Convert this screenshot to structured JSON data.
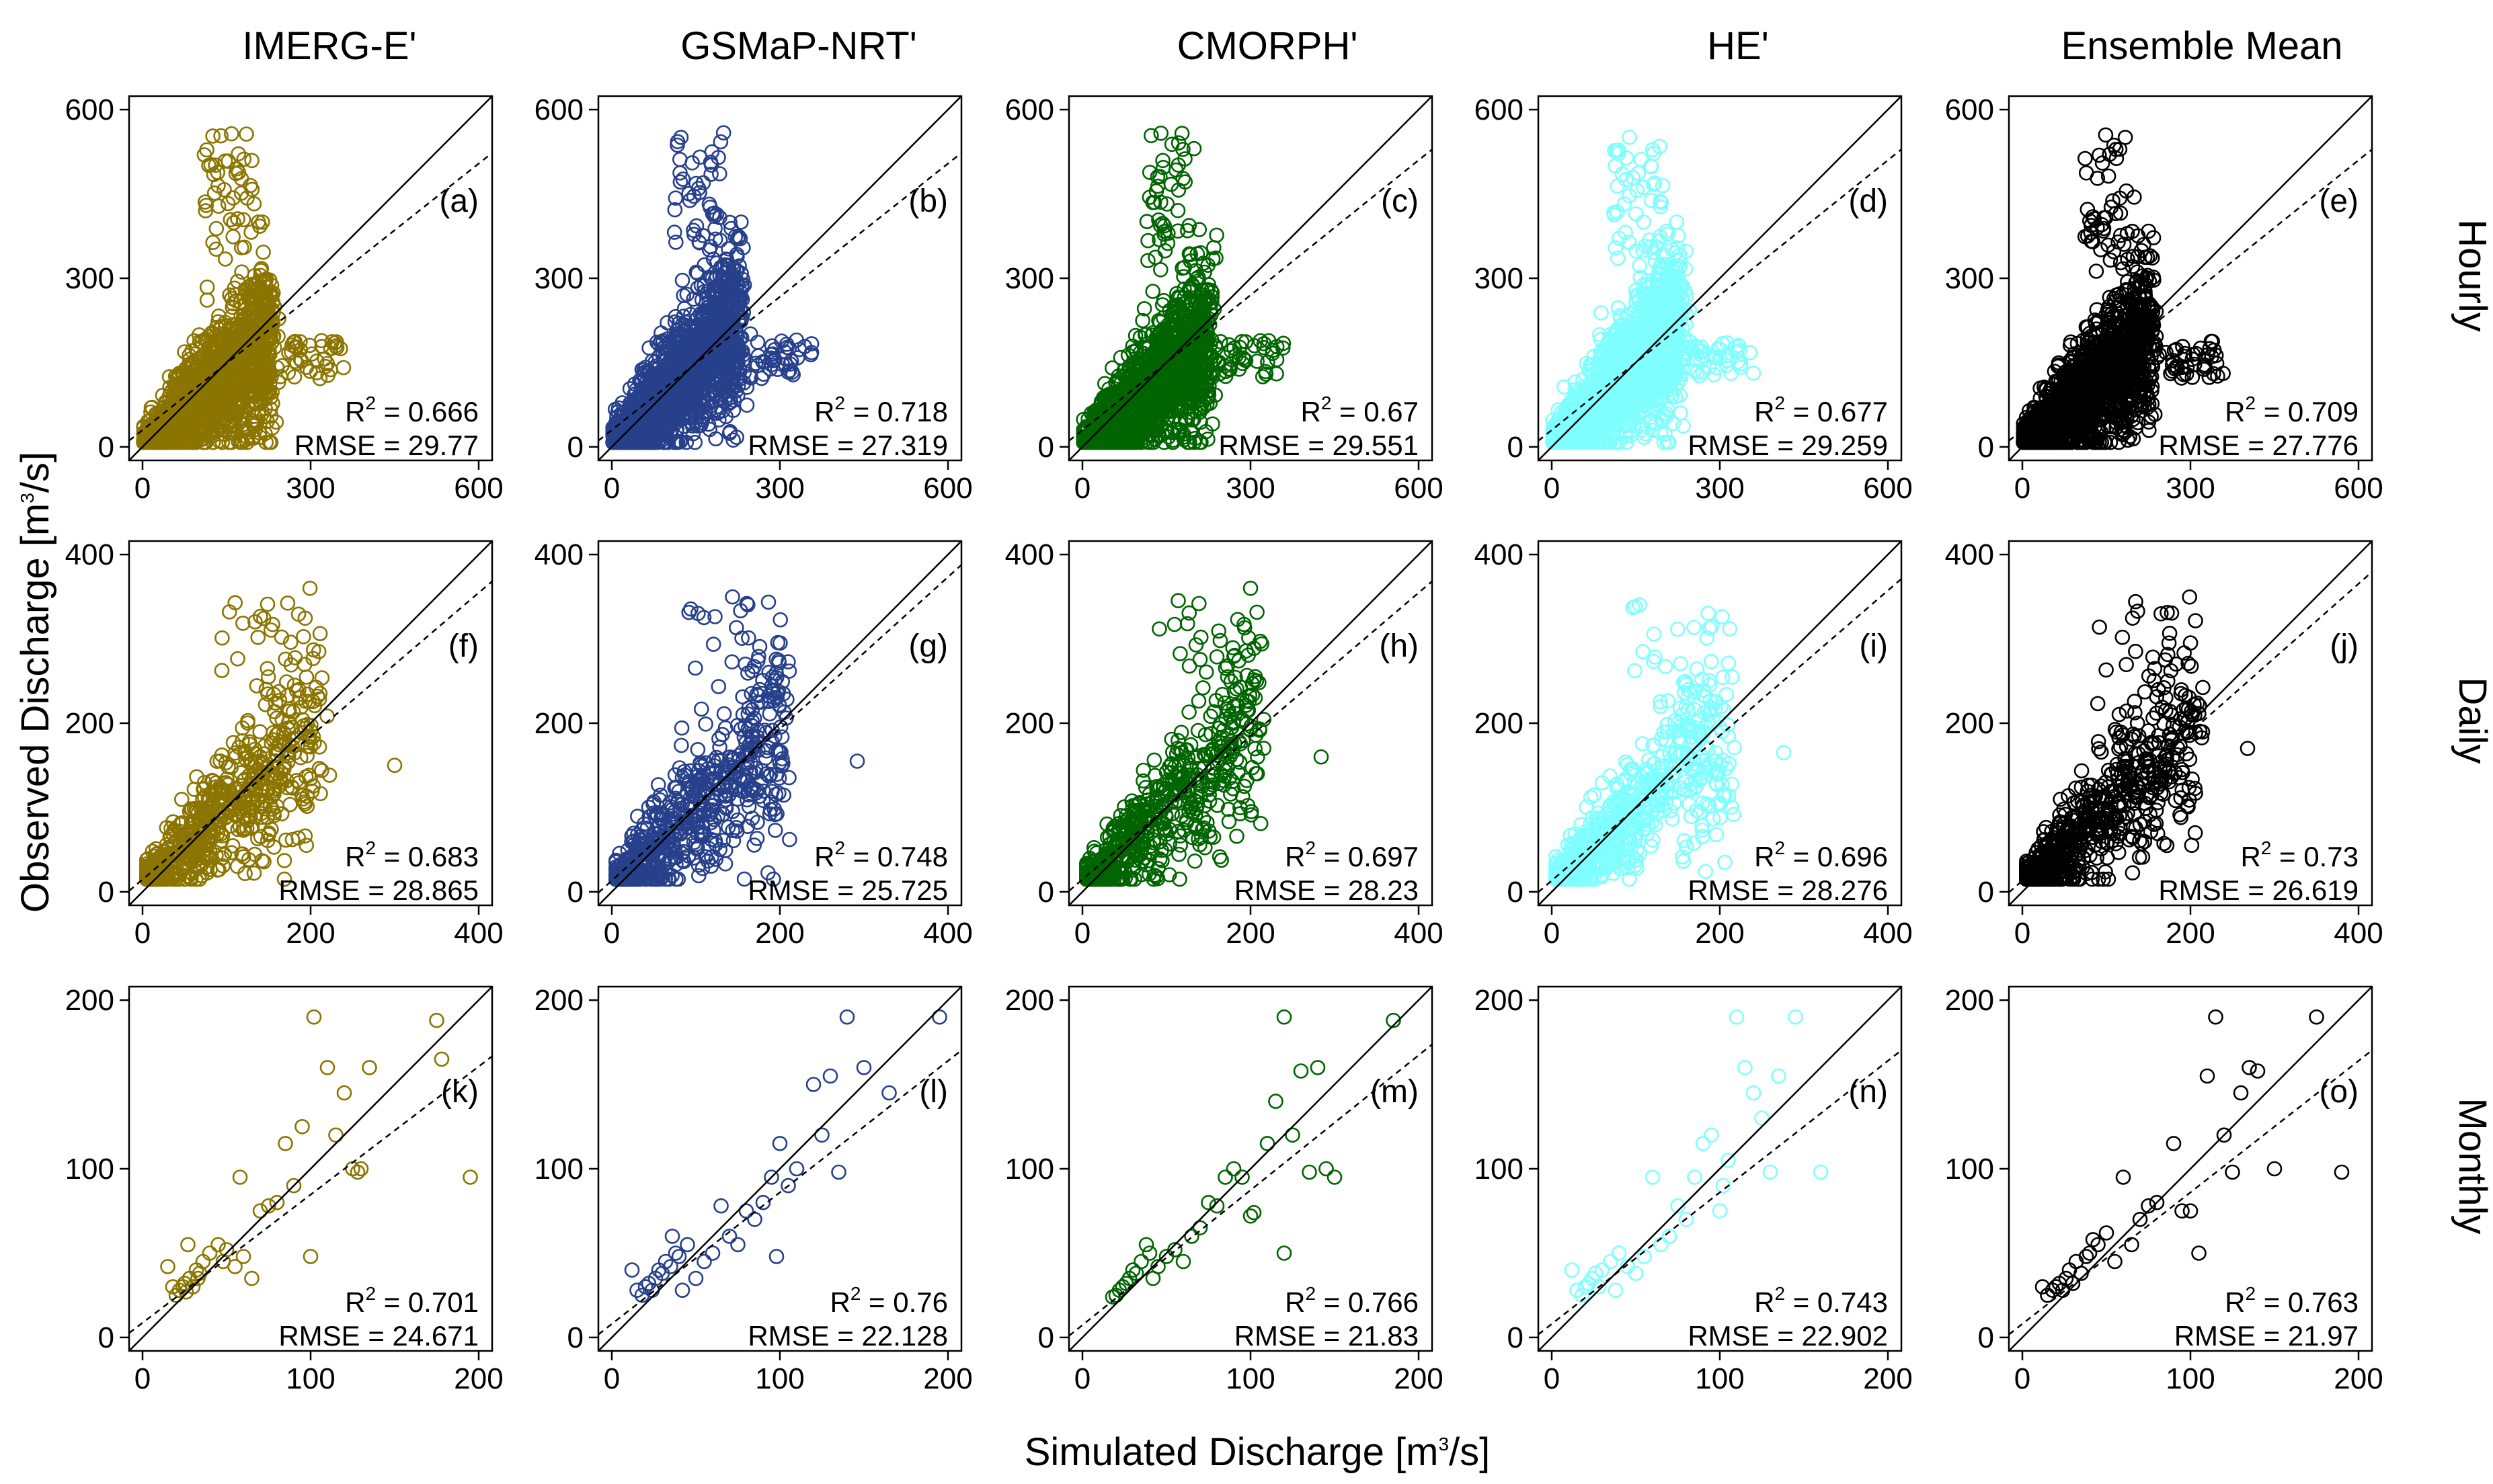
{
  "figure": {
    "xlabel_text": "Simulated Discharge  [m",
    "xlabel_sup": "3",
    "xlabel_end": "/s]",
    "ylabel_text": "Observed Discharge  [m",
    "ylabel_sup": "3",
    "ylabel_end": "/s]"
  },
  "colors": {
    "IMERG-E'": "#8B7500",
    "GSMaP-NRT'": "#27408B",
    "CMORPH'": "#006400",
    "HE'": "#7FFFFF",
    "Ensemble Mean": "#000000"
  },
  "chart_data": {
    "type": "scatter",
    "columns": [
      "IMERG-E'",
      "GSMaP-NRT'",
      "CMORPH'",
      "HE'",
      "Ensemble Mean"
    ],
    "rows": [
      {
        "name": "Hourly",
        "axis_range": [
          0,
          600
        ],
        "ticks": [
          0,
          300,
          600
        ]
      },
      {
        "name": "Daily",
        "axis_range": [
          0,
          400
        ],
        "ticks": [
          0,
          200,
          400
        ]
      },
      {
        "name": "Monthly",
        "axis_range": [
          0,
          200
        ],
        "ticks": [
          0,
          100,
          200
        ]
      }
    ],
    "reference_lines": {
      "solid": "1:1 line",
      "dashed": "linear regression fit"
    },
    "panels": [
      {
        "label": "(a)",
        "dataset": "IMERG-E'",
        "timescale": "Hourly",
        "r2": "0.666",
        "rmse": "29.77"
      },
      {
        "label": "(b)",
        "dataset": "GSMaP-NRT'",
        "timescale": "Hourly",
        "r2": "0.718",
        "rmse": "27.319"
      },
      {
        "label": "(c)",
        "dataset": "CMORPH'",
        "timescale": "Hourly",
        "r2": "0.67",
        "rmse": "29.551"
      },
      {
        "label": "(d)",
        "dataset": "HE'",
        "timescale": "Hourly",
        "r2": "0.677",
        "rmse": "29.259"
      },
      {
        "label": "(e)",
        "dataset": "Ensemble Mean",
        "timescale": "Hourly",
        "r2": "0.709",
        "rmse": "27.776"
      },
      {
        "label": "(f)",
        "dataset": "IMERG-E'",
        "timescale": "Daily",
        "r2": "0.683",
        "rmse": "28.865"
      },
      {
        "label": "(g)",
        "dataset": "GSMaP-NRT'",
        "timescale": "Daily",
        "r2": "0.748",
        "rmse": "25.725"
      },
      {
        "label": "(h)",
        "dataset": "CMORPH'",
        "timescale": "Daily",
        "r2": "0.697",
        "rmse": "28.23"
      },
      {
        "label": "(i)",
        "dataset": "HE'",
        "timescale": "Daily",
        "r2": "0.696",
        "rmse": "28.276"
      },
      {
        "label": "(j)",
        "dataset": "Ensemble Mean",
        "timescale": "Daily",
        "r2": "0.73",
        "rmse": "26.619"
      },
      {
        "label": "(k)",
        "dataset": "IMERG-E'",
        "timescale": "Monthly",
        "r2": "0.701",
        "rmse": "24.671"
      },
      {
        "label": "(l)",
        "dataset": "GSMaP-NRT'",
        "timescale": "Monthly",
        "r2": "0.76",
        "rmse": "22.128"
      },
      {
        "label": "(m)",
        "dataset": "CMORPH'",
        "timescale": "Monthly",
        "r2": "0.766",
        "rmse": "21.83"
      },
      {
        "label": "(n)",
        "dataset": "HE'",
        "timescale": "Monthly",
        "r2": "0.743",
        "rmse": "22.902"
      },
      {
        "label": "(o)",
        "dataset": "Ensemble Mean",
        "timescale": "Monthly",
        "r2": "0.763",
        "rmse": "21.97"
      }
    ],
    "regression_slopes": {
      "Hourly": [
        0.79,
        0.79,
        0.8,
        0.8,
        0.8
      ],
      "Daily": [
        0.85,
        0.9,
        0.85,
        0.86,
        0.88
      ],
      "Monthly": [
        0.76,
        0.78,
        0.8,
        0.78,
        0.78
      ]
    },
    "regression_intercepts": {
      "Hourly": [
        30,
        30,
        30,
        30,
        30
      ],
      "Daily": [
        22,
        20,
        22,
        20,
        20
      ],
      "Monthly": [
        26,
        24,
        22,
        24,
        24
      ]
    },
    "monthly_points": {
      "IMERG-E'": [
        [
          20,
          25
        ],
        [
          22,
          28
        ],
        [
          24,
          30
        ],
        [
          25,
          32
        ],
        [
          26,
          27
        ],
        [
          28,
          35
        ],
        [
          30,
          30
        ],
        [
          32,
          40
        ],
        [
          34,
          38
        ],
        [
          36,
          45
        ],
        [
          40,
          50
        ],
        [
          45,
          55
        ],
        [
          48,
          45
        ],
        [
          50,
          52
        ],
        [
          55,
          42
        ],
        [
          58,
          95
        ],
        [
          60,
          48
        ],
        [
          65,
          35
        ],
        [
          70,
          75
        ],
        [
          75,
          78
        ],
        [
          80,
          80
        ],
        [
          85,
          115
        ],
        [
          90,
          90
        ],
        [
          95,
          125
        ],
        [
          100,
          48
        ],
        [
          102,
          190
        ],
        [
          110,
          160
        ],
        [
          115,
          120
        ],
        [
          120,
          145
        ],
        [
          125,
          100
        ],
        [
          128,
          98
        ],
        [
          130,
          100
        ],
        [
          135,
          160
        ],
        [
          175,
          188
        ],
        [
          178,
          165
        ],
        [
          195,
          95
        ],
        [
          15,
          42
        ],
        [
          18,
          30
        ],
        [
          27,
          55
        ],
        [
          33,
          35
        ]
      ],
      "GSMaP-NRT'": [
        [
          15,
          28
        ],
        [
          18,
          25
        ],
        [
          20,
          30
        ],
        [
          22,
          32
        ],
        [
          24,
          28
        ],
        [
          26,
          35
        ],
        [
          28,
          40
        ],
        [
          30,
          38
        ],
        [
          32,
          45
        ],
        [
          35,
          42
        ],
        [
          38,
          50
        ],
        [
          40,
          48
        ],
        [
          45,
          55
        ],
        [
          50,
          35
        ],
        [
          55,
          45
        ],
        [
          60,
          50
        ],
        [
          65,
          78
        ],
        [
          70,
          60
        ],
        [
          75,
          55
        ],
        [
          80,
          75
        ],
        [
          85,
          70
        ],
        [
          90,
          80
        ],
        [
          95,
          95
        ],
        [
          98,
          48
        ],
        [
          100,
          115
        ],
        [
          105,
          90
        ],
        [
          110,
          100
        ],
        [
          120,
          150
        ],
        [
          125,
          120
        ],
        [
          130,
          155
        ],
        [
          135,
          98
        ],
        [
          140,
          190
        ],
        [
          150,
          160
        ],
        [
          165,
          145
        ],
        [
          195,
          190
        ],
        [
          12,
          40
        ],
        [
          36,
          60
        ],
        [
          42,
          28
        ]
      ],
      "CMORPH'": [
        [
          20,
          25
        ],
        [
          22,
          28
        ],
        [
          24,
          30
        ],
        [
          26,
          32
        ],
        [
          28,
          35
        ],
        [
          30,
          40
        ],
        [
          32,
          38
        ],
        [
          35,
          45
        ],
        [
          38,
          55
        ],
        [
          40,
          50
        ],
        [
          45,
          42
        ],
        [
          50,
          48
        ],
        [
          55,
          52
        ],
        [
          60,
          45
        ],
        [
          65,
          60
        ],
        [
          70,
          65
        ],
        [
          75,
          80
        ],
        [
          80,
          78
        ],
        [
          85,
          95
        ],
        [
          90,
          100
        ],
        [
          95,
          95
        ],
        [
          100,
          72
        ],
        [
          102,
          74
        ],
        [
          110,
          115
        ],
        [
          115,
          140
        ],
        [
          120,
          50
        ],
        [
          125,
          120
        ],
        [
          130,
          158
        ],
        [
          135,
          98
        ],
        [
          140,
          160
        ],
        [
          145,
          100
        ],
        [
          150,
          95
        ],
        [
          120,
          190
        ],
        [
          185,
          188
        ],
        [
          18,
          24
        ],
        [
          42,
          35
        ]
      ],
      "HE'": [
        [
          15,
          28
        ],
        [
          18,
          25
        ],
        [
          20,
          30
        ],
        [
          22,
          32
        ],
        [
          24,
          35
        ],
        [
          26,
          38
        ],
        [
          28,
          30
        ],
        [
          30,
          40
        ],
        [
          35,
          45
        ],
        [
          40,
          50
        ],
        [
          45,
          42
        ],
        [
          50,
          38
        ],
        [
          55,
          48
        ],
        [
          60,
          95
        ],
        [
          65,
          55
        ],
        [
          70,
          60
        ],
        [
          75,
          78
        ],
        [
          80,
          70
        ],
        [
          85,
          95
        ],
        [
          90,
          115
        ],
        [
          95,
          120
        ],
        [
          100,
          75
        ],
        [
          102,
          90
        ],
        [
          105,
          105
        ],
        [
          110,
          190
        ],
        [
          115,
          160
        ],
        [
          120,
          145
        ],
        [
          125,
          130
        ],
        [
          130,
          98
        ],
        [
          135,
          155
        ],
        [
          145,
          190
        ],
        [
          160,
          98
        ],
        [
          12,
          40
        ],
        [
          38,
          28
        ]
      ],
      "Ensemble Mean": [
        [
          15,
          25
        ],
        [
          18,
          28
        ],
        [
          20,
          30
        ],
        [
          22,
          32
        ],
        [
          24,
          28
        ],
        [
          26,
          35
        ],
        [
          28,
          40
        ],
        [
          30,
          32
        ],
        [
          32,
          45
        ],
        [
          35,
          38
        ],
        [
          38,
          48
        ],
        [
          40,
          50
        ],
        [
          45,
          55
        ],
        [
          50,
          62
        ],
        [
          55,
          45
        ],
        [
          60,
          95
        ],
        [
          65,
          55
        ],
        [
          70,
          70
        ],
        [
          75,
          78
        ],
        [
          80,
          80
        ],
        [
          90,
          115
        ],
        [
          95,
          75
        ],
        [
          100,
          75
        ],
        [
          105,
          50
        ],
        [
          110,
          155
        ],
        [
          115,
          190
        ],
        [
          120,
          120
        ],
        [
          125,
          98
        ],
        [
          130,
          145
        ],
        [
          135,
          160
        ],
        [
          140,
          158
        ],
        [
          150,
          100
        ],
        [
          175,
          190
        ],
        [
          190,
          98
        ],
        [
          12,
          30
        ],
        [
          42,
          58
        ]
      ]
    }
  }
}
